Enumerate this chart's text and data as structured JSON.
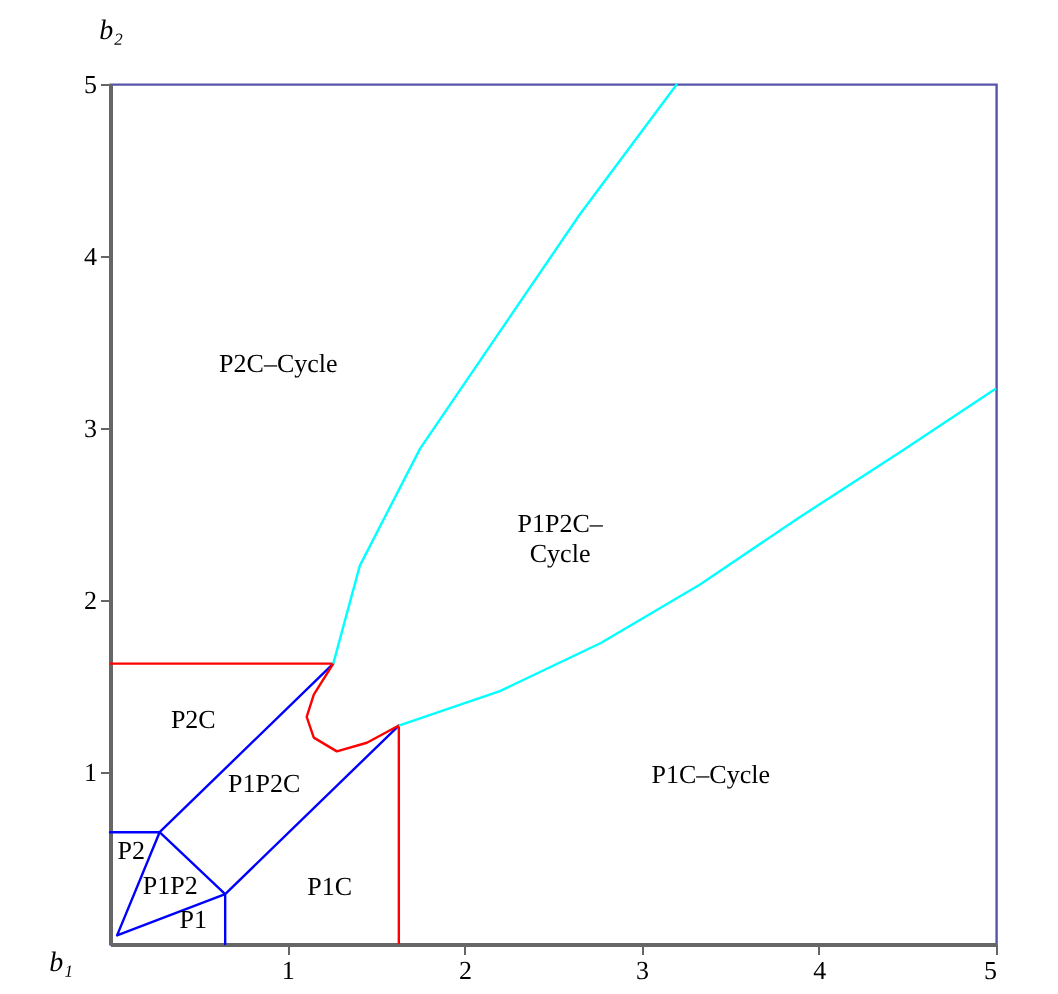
{
  "chart_data": {
    "type": "line",
    "xlabel": "b₁",
    "ylabel": "b₂",
    "xlim": [
      0,
      5
    ],
    "ylim": [
      0,
      5
    ],
    "xticks": [
      1,
      2,
      3,
      4,
      5
    ],
    "yticks": [
      1,
      2,
      3,
      4,
      5
    ],
    "marker": "none",
    "line_style": "solid",
    "series": [
      {
        "color": "#0000ff",
        "x": [
          1.26,
          0.28,
          0,
          0.28,
          0.65,
          1.63,
          0.65,
          0.65,
          0.65,
          0.04,
          0.28
        ],
        "values": [
          1.63,
          0.65,
          0.65,
          0.65,
          0.29,
          1.27,
          0.29,
          0,
          0.29,
          0.05,
          0.65
        ]
      },
      {
        "color": "#ff0000",
        "x": [
          0,
          1.26,
          1.15,
          1.11,
          1.15,
          1.28,
          1.45,
          1.63,
          1.63
        ],
        "values": [
          1.63,
          1.63,
          1.45,
          1.32,
          1.2,
          1.12,
          1.17,
          1.27,
          0
        ]
      },
      {
        "color": "#00ffff",
        "x": [
          1.26,
          1.41,
          1.75,
          2.2,
          2.65,
          3.2
        ],
        "values": [
          1.63,
          2.2,
          2.88,
          3.56,
          4.24,
          5
        ]
      },
      {
        "color": "#00ffff",
        "x": [
          1.63,
          2.2,
          2.77,
          3.33,
          3.89,
          4.46,
          5
        ],
        "values": [
          1.27,
          1.47,
          1.75,
          2.09,
          2.48,
          2.86,
          3.23
        ]
      }
    ],
    "annotations": [
      "P2C–Cycle",
      "P1P2C–\nCycle",
      "P1C–Cycle",
      "P2C",
      "P1P2C",
      "P1C",
      "P2",
      "P1P2",
      "P1"
    ]
  }
}
